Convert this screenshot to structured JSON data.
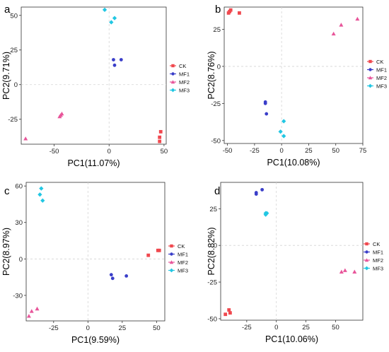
{
  "series_styles": [
    {
      "name": "CK",
      "color": "#f0484e",
      "marker": "square"
    },
    {
      "name": "MF1",
      "color": "#3a3ec9",
      "marker": "circle"
    },
    {
      "name": "MF2",
      "color": "#e8559a",
      "marker": "triangle"
    },
    {
      "name": "MF3",
      "color": "#22c7e3",
      "marker": "diamond"
    }
  ],
  "chart_data": [
    {
      "panel": "a",
      "type": "scatter",
      "xlabel": "PC1(11.07%)",
      "ylabel": "PC2(9.71%)",
      "xlim": [
        -80,
        52
      ],
      "ylim": [
        -43,
        56
      ],
      "xticks": [
        -50,
        0,
        50
      ],
      "xtick_labels": [
        "-50",
        "0",
        "50"
      ],
      "yticks": [
        -25,
        0,
        25,
        50
      ],
      "ytick_labels": [
        "-25",
        "0",
        "25",
        "50"
      ],
      "grid": true,
      "legend": "right",
      "series": [
        {
          "name": "CK",
          "points": [
            [
              47,
              -34
            ],
            [
              46,
              -38
            ],
            [
              46,
              -41
            ]
          ]
        },
        {
          "name": "MF1",
          "points": [
            [
              4,
              18
            ],
            [
              5,
              14
            ],
            [
              11,
              18
            ]
          ]
        },
        {
          "name": "MF2",
          "points": [
            [
              -76,
              -39
            ],
            [
              -44,
              -22
            ],
            [
              -43,
              -21
            ],
            [
              -45,
              -23
            ]
          ]
        },
        {
          "name": "MF3",
          "points": [
            [
              -4,
              54
            ],
            [
              2,
              45
            ],
            [
              5,
              48
            ]
          ]
        }
      ]
    },
    {
      "panel": "b",
      "type": "scatter",
      "xlabel": "PC1(10.08%)",
      "ylabel": "PC2(8.76%)",
      "xlim": [
        -53,
        75
      ],
      "ylim": [
        -52,
        40
      ],
      "xticks": [
        -50,
        -25,
        0,
        25,
        50,
        75
      ],
      "xtick_labels": [
        "-50",
        "-25",
        "0",
        "25",
        "50",
        "75"
      ],
      "yticks": [
        -50,
        -25,
        0,
        25
      ],
      "ytick_labels": [
        "-50",
        "-25",
        "0",
        "25"
      ],
      "grid": true,
      "legend": "right",
      "series": [
        {
          "name": "CK",
          "points": [
            [
              -49,
              36
            ],
            [
              -47,
              38
            ],
            [
              -39,
              36
            ],
            [
              -48,
              37
            ]
          ]
        },
        {
          "name": "MF1",
          "points": [
            [
              -15,
              -24
            ],
            [
              -15,
              -25
            ],
            [
              -14,
              -32
            ]
          ]
        },
        {
          "name": "MF2",
          "points": [
            [
              48,
              22
            ],
            [
              55,
              28
            ],
            [
              70,
              32
            ]
          ]
        },
        {
          "name": "MF3",
          "points": [
            [
              -1,
              -44
            ],
            [
              2,
              -37
            ],
            [
              2,
              -47
            ]
          ]
        }
      ]
    },
    {
      "panel": "c",
      "type": "scatter",
      "xlabel": "PC1(9.59%)",
      "ylabel": "PC2(8.97%)",
      "xlim": [
        -45,
        56
      ],
      "ylim": [
        -51,
        63
      ],
      "xticks": [
        -25,
        0,
        25,
        50
      ],
      "xtick_labels": [
        "-25",
        "0",
        "25",
        "50"
      ],
      "yticks": [
        -30,
        0,
        30,
        60
      ],
      "ytick_labels": [
        "-30",
        "0",
        "30",
        "60"
      ],
      "grid": true,
      "legend": "right",
      "series": [
        {
          "name": "CK",
          "points": [
            [
              44,
              3
            ],
            [
              51,
              7
            ],
            [
              52,
              7
            ]
          ]
        },
        {
          "name": "MF1",
          "points": [
            [
              17,
              -13
            ],
            [
              18,
              -16
            ],
            [
              28,
              -14
            ]
          ]
        },
        {
          "name": "MF2",
          "points": [
            [
              -43,
              -47
            ],
            [
              -41,
              -43
            ],
            [
              -37,
              -41
            ]
          ]
        },
        {
          "name": "MF3",
          "points": [
            [
              -34,
              58
            ],
            [
              -35,
              53
            ],
            [
              -33,
              48
            ]
          ]
        }
      ]
    },
    {
      "panel": "d",
      "type": "scatter",
      "xlabel": "PC1(10.06%)",
      "ylabel": "PC2(8.82%)",
      "xlim": [
        -47,
        73
      ],
      "ylim": [
        -51,
        43
      ],
      "xticks": [
        -25,
        0,
        25,
        50
      ],
      "xtick_labels": [
        "-25",
        "0",
        "25",
        "50"
      ],
      "yticks": [
        -50,
        -25,
        0,
        25
      ],
      "ytick_labels": [
        "-50",
        "-25",
        "0",
        "25"
      ],
      "grid": true,
      "legend": "right",
      "series": [
        {
          "name": "CK",
          "points": [
            [
              -43,
              -47
            ],
            [
              -40,
              -44
            ],
            [
              -39,
              -46
            ]
          ]
        },
        {
          "name": "MF1",
          "points": [
            [
              -17,
              36
            ],
            [
              -17,
              35
            ],
            [
              -12,
              38
            ]
          ]
        },
        {
          "name": "MF2",
          "points": [
            [
              55,
              -18
            ],
            [
              58,
              -17
            ],
            [
              66,
              -18
            ]
          ]
        },
        {
          "name": "MF3",
          "points": [
            [
              -9,
              22
            ],
            [
              -9,
              21
            ],
            [
              -8,
              22
            ]
          ]
        }
      ]
    }
  ]
}
